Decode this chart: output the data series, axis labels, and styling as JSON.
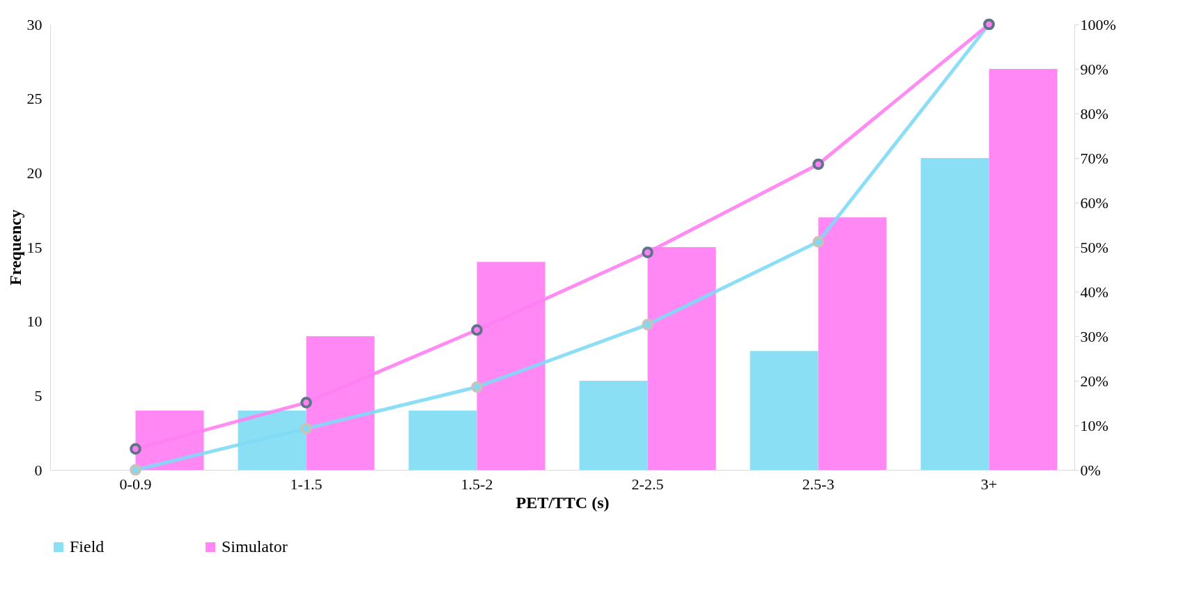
{
  "chart_data": {
    "type": "bar",
    "xlabel": "PET/TTC (s)",
    "ylabel": "Frequency",
    "categories": [
      "0-0.9",
      "1-1.5",
      "1.5-2",
      "2-2.5",
      "2.5-3",
      "3+"
    ],
    "series": [
      {
        "name": "Field",
        "color": "#8bdff5",
        "values": [
          0,
          4,
          4,
          6,
          8,
          21
        ]
      },
      {
        "name": "Simulator",
        "color": "#ff88f5",
        "values": [
          4,
          9,
          14,
          15,
          17,
          27
        ]
      },
      {
        "type": "line",
        "axis": "y2",
        "color": "#7fdaf5",
        "values": [
          0,
          9.3,
          18.6,
          32.6,
          51.2,
          100
        ]
      },
      {
        "type": "line",
        "axis": "y2",
        "color": "#ff80f2",
        "values": [
          4.7,
          15.1,
          31.4,
          48.8,
          68.6,
          100
        ]
      }
    ],
    "ylim": [
      0,
      30
    ],
    "yticks": [
      0,
      5,
      10,
      15,
      20,
      25,
      30
    ],
    "y2lim": [
      0,
      100
    ],
    "y2ticks": [
      {
        "value": 0,
        "label": "0%"
      },
      {
        "value": 10,
        "label": "10%"
      },
      {
        "value": 20,
        "label": "20%"
      },
      {
        "value": 30,
        "label": "30%"
      },
      {
        "value": 40,
        "label": "40%"
      },
      {
        "value": 50,
        "label": "50%"
      },
      {
        "value": 60,
        "label": "60%"
      },
      {
        "value": 70,
        "label": "70%"
      },
      {
        "value": 80,
        "label": "80%"
      },
      {
        "value": 90,
        "label": "90%"
      },
      {
        "value": 100,
        "label": "100%"
      }
    ],
    "legend": "bottom",
    "marker": "circle",
    "line_style": "solid",
    "grid": false
  }
}
